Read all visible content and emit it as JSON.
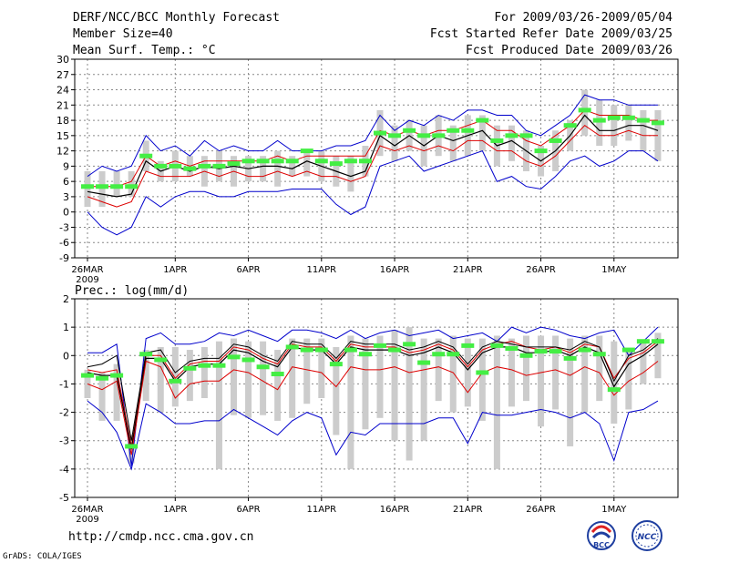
{
  "header": {
    "left_line1": "DERF/NCC/BCC Monthly Forecast",
    "left_line2": "Member Size=40",
    "left_line3": "Mean Surf. Temp.: °C",
    "right_line1": "For 2009/03/26-2009/05/04",
    "right_line2": "Fcst Started Refer Date 2009/03/25",
    "right_line3": "Fcst Produced Date 2009/03/26"
  },
  "footer": {
    "url": "http://cmdp.ncc.cma.gov.cn",
    "grads": "GrADS: COLA/IGES",
    "logo_left_text": "BCC",
    "logo_right_text": "NCC"
  },
  "colors": {
    "envelope": "#0000cc",
    "mean": "#000000",
    "lower": "#dd0000",
    "bar": "#cccccc",
    "marker": "#44ee44",
    "grid": "#888888"
  },
  "chart_data": [
    {
      "type": "line",
      "id": "temp",
      "title": "Mean Surf. Temp.: °C",
      "x_tick_labels": [
        "26MAR",
        "1APR",
        "6APR",
        "11APR",
        "16APR",
        "21APR",
        "26APR",
        "1MAY"
      ],
      "x_tick_days": [
        1,
        7,
        12,
        17,
        22,
        27,
        32,
        37
      ],
      "x_sublabel": "2009",
      "days": [
        1,
        2,
        3,
        4,
        5,
        6,
        7,
        8,
        9,
        10,
        11,
        12,
        13,
        14,
        15,
        16,
        17,
        18,
        19,
        20,
        21,
        22,
        23,
        24,
        25,
        26,
        27,
        28,
        29,
        30,
        31,
        32,
        33,
        34,
        35,
        36,
        37,
        38,
        39,
        40
      ],
      "ylim": [
        -9,
        30
      ],
      "y_ticks": [
        -9,
        -6,
        -3,
        0,
        3,
        6,
        9,
        12,
        15,
        18,
        21,
        24,
        27,
        30
      ],
      "series": [
        {
          "name": "max",
          "values": [
            7,
            9,
            8,
            9,
            15,
            12,
            13,
            11,
            14,
            12,
            13,
            12,
            12,
            14,
            12,
            12,
            12,
            13,
            13,
            14,
            19,
            16,
            18,
            17,
            19,
            18,
            20,
            20,
            19,
            19,
            16,
            15,
            17,
            19,
            23,
            22,
            22,
            21,
            21,
            21
          ]
        },
        {
          "name": "upper",
          "values": [
            5,
            5,
            5,
            6,
            11,
            9,
            10,
            9,
            10,
            10,
            10,
            10,
            10,
            11,
            10,
            11,
            11,
            11,
            11,
            11,
            16,
            15,
            16,
            15,
            16,
            16,
            17,
            18,
            16,
            16,
            14,
            13,
            15,
            17,
            20,
            19,
            19,
            19,
            18,
            18
          ]
        },
        {
          "name": "mean",
          "values": [
            4,
            3.5,
            3,
            3.5,
            10,
            8,
            9,
            8,
            9,
            8.5,
            9,
            8.5,
            9,
            9,
            8.5,
            10,
            9,
            8,
            7,
            8,
            15,
            13,
            15,
            13,
            15,
            14,
            15,
            16,
            13,
            14,
            12,
            10,
            12,
            15,
            19,
            16,
            16,
            17,
            17,
            16
          ]
        },
        {
          "name": "lower",
          "values": [
            3,
            2,
            1,
            2,
            8,
            7,
            7,
            7,
            8,
            7,
            8,
            7,
            7,
            8,
            7,
            8,
            7,
            7,
            6,
            7,
            13,
            12,
            13,
            12,
            13,
            12,
            14,
            14,
            12,
            12,
            10,
            9,
            11,
            14,
            17,
            15,
            15,
            16,
            15,
            15
          ]
        },
        {
          "name": "min",
          "values": [
            0,
            -3,
            -4.5,
            -3,
            3,
            1,
            3,
            4,
            4,
            3,
            3,
            4,
            4,
            4,
            4.5,
            4.5,
            4.5,
            1.5,
            -0.5,
            1,
            9,
            10,
            11,
            8,
            9,
            10,
            11,
            12,
            6,
            7,
            5,
            4.5,
            7,
            10,
            11,
            9,
            10,
            12,
            12,
            10
          ]
        }
      ],
      "bars": {
        "low": [
          1,
          1,
          3,
          3,
          8,
          6,
          6,
          7,
          5,
          6,
          5,
          6,
          6,
          5,
          7,
          7,
          6,
          5,
          4,
          7,
          11,
          10,
          12,
          9,
          11,
          10,
          11,
          12,
          9,
          10,
          8,
          7,
          8,
          12,
          15,
          13,
          13,
          14,
          12,
          10
        ],
        "high": [
          8,
          8,
          8,
          8,
          14,
          10,
          12,
          11,
          11,
          12,
          11,
          11,
          11,
          12,
          11,
          12,
          12,
          11,
          11,
          13,
          20,
          17,
          18,
          17,
          19,
          17,
          19,
          19,
          17,
          17,
          16,
          13,
          16,
          18,
          24,
          22,
          21,
          21,
          20,
          20
        ]
      },
      "markers": [
        5,
        5,
        5,
        5,
        11,
        9,
        9,
        8.5,
        9,
        9,
        9.5,
        10,
        10,
        10,
        10,
        12,
        10,
        9.5,
        10,
        10,
        15.5,
        15,
        16,
        15,
        15,
        16,
        16,
        18,
        14,
        15,
        15,
        12,
        14,
        17,
        20,
        18,
        18.5,
        18.5,
        18,
        17.5
      ]
    },
    {
      "type": "line",
      "id": "prec",
      "title": "Prec.: log(mm/d)",
      "x_tick_labels": [
        "26MAR",
        "1APR",
        "6APR",
        "11APR",
        "16APR",
        "21APR",
        "26APR",
        "1MAY"
      ],
      "x_tick_days": [
        1,
        7,
        12,
        17,
        22,
        27,
        32,
        37
      ],
      "x_sublabel": "2009",
      "days": [
        1,
        2,
        3,
        4,
        5,
        6,
        7,
        8,
        9,
        10,
        11,
        12,
        13,
        14,
        15,
        16,
        17,
        18,
        19,
        20,
        21,
        22,
        23,
        24,
        25,
        26,
        27,
        28,
        29,
        30,
        31,
        32,
        33,
        34,
        35,
        36,
        37,
        38,
        39,
        40
      ],
      "ylim": [
        -5,
        2
      ],
      "y_ticks": [
        -5,
        -4,
        -3,
        -2,
        -1,
        0,
        1,
        2
      ],
      "series": [
        {
          "name": "max",
          "values": [
            0.1,
            0.1,
            0.4,
            -3.9,
            0.6,
            0.8,
            0.4,
            0.4,
            0.5,
            0.8,
            0.7,
            0.9,
            0.7,
            0.5,
            0.9,
            0.9,
            0.8,
            0.6,
            0.9,
            0.6,
            0.8,
            0.9,
            0.7,
            0.8,
            0.9,
            0.6,
            0.7,
            0.8,
            0.5,
            1.0,
            0.8,
            1.0,
            0.9,
            0.7,
            0.6,
            0.8,
            0.9,
            0.0,
            0.5,
            1.0
          ]
        },
        {
          "name": "upper",
          "values": [
            -0.5,
            -0.6,
            -0.5,
            -3.2,
            0.0,
            0.0,
            -0.8,
            -0.3,
            -0.2,
            -0.2,
            0.3,
            0.2,
            -0.1,
            -0.3,
            0.4,
            0.3,
            0.3,
            -0.2,
            0.4,
            0.3,
            0.3,
            0.3,
            0.1,
            0.2,
            0.4,
            0.2,
            -0.4,
            0.2,
            0.4,
            0.5,
            0.3,
            0.2,
            0.3,
            0.1,
            0.4,
            0.3,
            -0.8,
            -0.1,
            0.1,
            0.5
          ]
        },
        {
          "name": "mean",
          "values": [
            -0.6,
            -0.7,
            -0.7,
            -3.3,
            -0.1,
            -0.1,
            -0.9,
            -0.4,
            -0.3,
            -0.3,
            0.2,
            0.1,
            -0.2,
            -0.4,
            0.3,
            0.2,
            0.2,
            -0.3,
            0.3,
            0.2,
            0.2,
            0.2,
            0.0,
            0.1,
            0.3,
            0.1,
            -0.5,
            0.1,
            0.3,
            0.3,
            0.1,
            0.1,
            0.2,
            0.0,
            0.3,
            0.1,
            -1.1,
            -0.3,
            0.0,
            0.4
          ]
        },
        {
          "name": "lower",
          "values": [
            -1.0,
            -1.2,
            -0.9,
            -3.5,
            -0.2,
            -0.4,
            -1.5,
            -1.0,
            -0.9,
            -0.9,
            -0.5,
            -0.6,
            -0.9,
            -1.2,
            -0.4,
            -0.5,
            -0.6,
            -1.1,
            -0.4,
            -0.5,
            -0.5,
            -0.4,
            -0.6,
            -0.5,
            -0.4,
            -0.6,
            -1.3,
            -0.6,
            -0.4,
            -0.5,
            -0.7,
            -0.6,
            -0.5,
            -0.7,
            -0.4,
            -0.6,
            -1.4,
            -0.9,
            -0.6,
            -0.2
          ]
        },
        {
          "name": "min",
          "values": [
            -1.6,
            -2.0,
            -2.7,
            -4.0,
            -1.7,
            -2.0,
            -2.4,
            -2.4,
            -2.3,
            -2.3,
            -1.9,
            -2.2,
            -2.5,
            -2.8,
            -2.3,
            -2.0,
            -2.2,
            -3.5,
            -2.7,
            -2.8,
            -2.4,
            -2.4,
            -2.4,
            -2.4,
            -2.2,
            -2.2,
            -3.1,
            -2.0,
            -2.1,
            -2.1,
            -2.0,
            -1.9,
            -2.0,
            -2.2,
            -2.0,
            -2.4,
            -3.7,
            -2.0,
            -1.9,
            -1.6
          ]
        },
        {
          "name": "sample",
          "values": [
            -0.4,
            -0.3,
            0.0,
            -3.0,
            0.1,
            0.2,
            -0.6,
            -0.2,
            -0.1,
            -0.1,
            0.4,
            0.3,
            0.0,
            -0.2,
            0.5,
            0.4,
            0.4,
            -0.1,
            0.5,
            0.4,
            0.4,
            0.4,
            0.2,
            0.3,
            0.5,
            0.3,
            -0.3,
            0.3,
            0.5,
            0.4,
            0.3,
            0.3,
            0.3,
            0.2,
            0.5,
            0.3,
            -0.9,
            0.0,
            0.2,
            0.6
          ]
        }
      ],
      "bars": {
        "low": [
          -1.5,
          -2.3,
          -2.3,
          -3.8,
          -1.6,
          -2.0,
          -1.8,
          -1.6,
          -1.5,
          -4.0,
          -2.1,
          -2.2,
          -2.1,
          -2.3,
          -2.2,
          -1.7,
          -1.5,
          -2.8,
          -4.0,
          -2.6,
          -2.2,
          -3.0,
          -3.7,
          -3.0,
          -1.6,
          -2.0,
          -1.8,
          -2.3,
          -4.0,
          -1.8,
          -1.6,
          -2.5,
          -1.9,
          -3.2,
          -2.0,
          -1.6,
          -2.4,
          -1.9,
          -1.0,
          -0.8
        ],
        "high": [
          -0.5,
          -0.6,
          -0.3,
          -2.8,
          0.2,
          0.3,
          0.3,
          0.2,
          0.3,
          0.5,
          0.6,
          0.5,
          0.5,
          0.2,
          0.6,
          0.6,
          0.6,
          0.3,
          0.7,
          0.6,
          0.7,
          0.9,
          1.0,
          0.6,
          0.6,
          0.7,
          0.6,
          0.6,
          0.7,
          0.6,
          0.7,
          0.7,
          0.7,
          0.6,
          0.7,
          0.7,
          0.5,
          0.2,
          0.5,
          0.8
        ]
      },
      "markers": [
        -0.7,
        -0.8,
        -0.7,
        -3.2,
        0.05,
        -0.15,
        -0.9,
        -0.45,
        -0.35,
        -0.35,
        -0.05,
        -0.15,
        -0.4,
        -0.65,
        0.3,
        0.2,
        0.2,
        -0.3,
        0.2,
        0.05,
        0.35,
        0.2,
        0.4,
        -0.25,
        0.05,
        0.05,
        0.35,
        -0.6,
        0.35,
        0.25,
        0.0,
        0.15,
        0.15,
        -0.1,
        0.2,
        0.05,
        -1.2,
        0.2,
        0.5,
        0.5
      ]
    }
  ]
}
